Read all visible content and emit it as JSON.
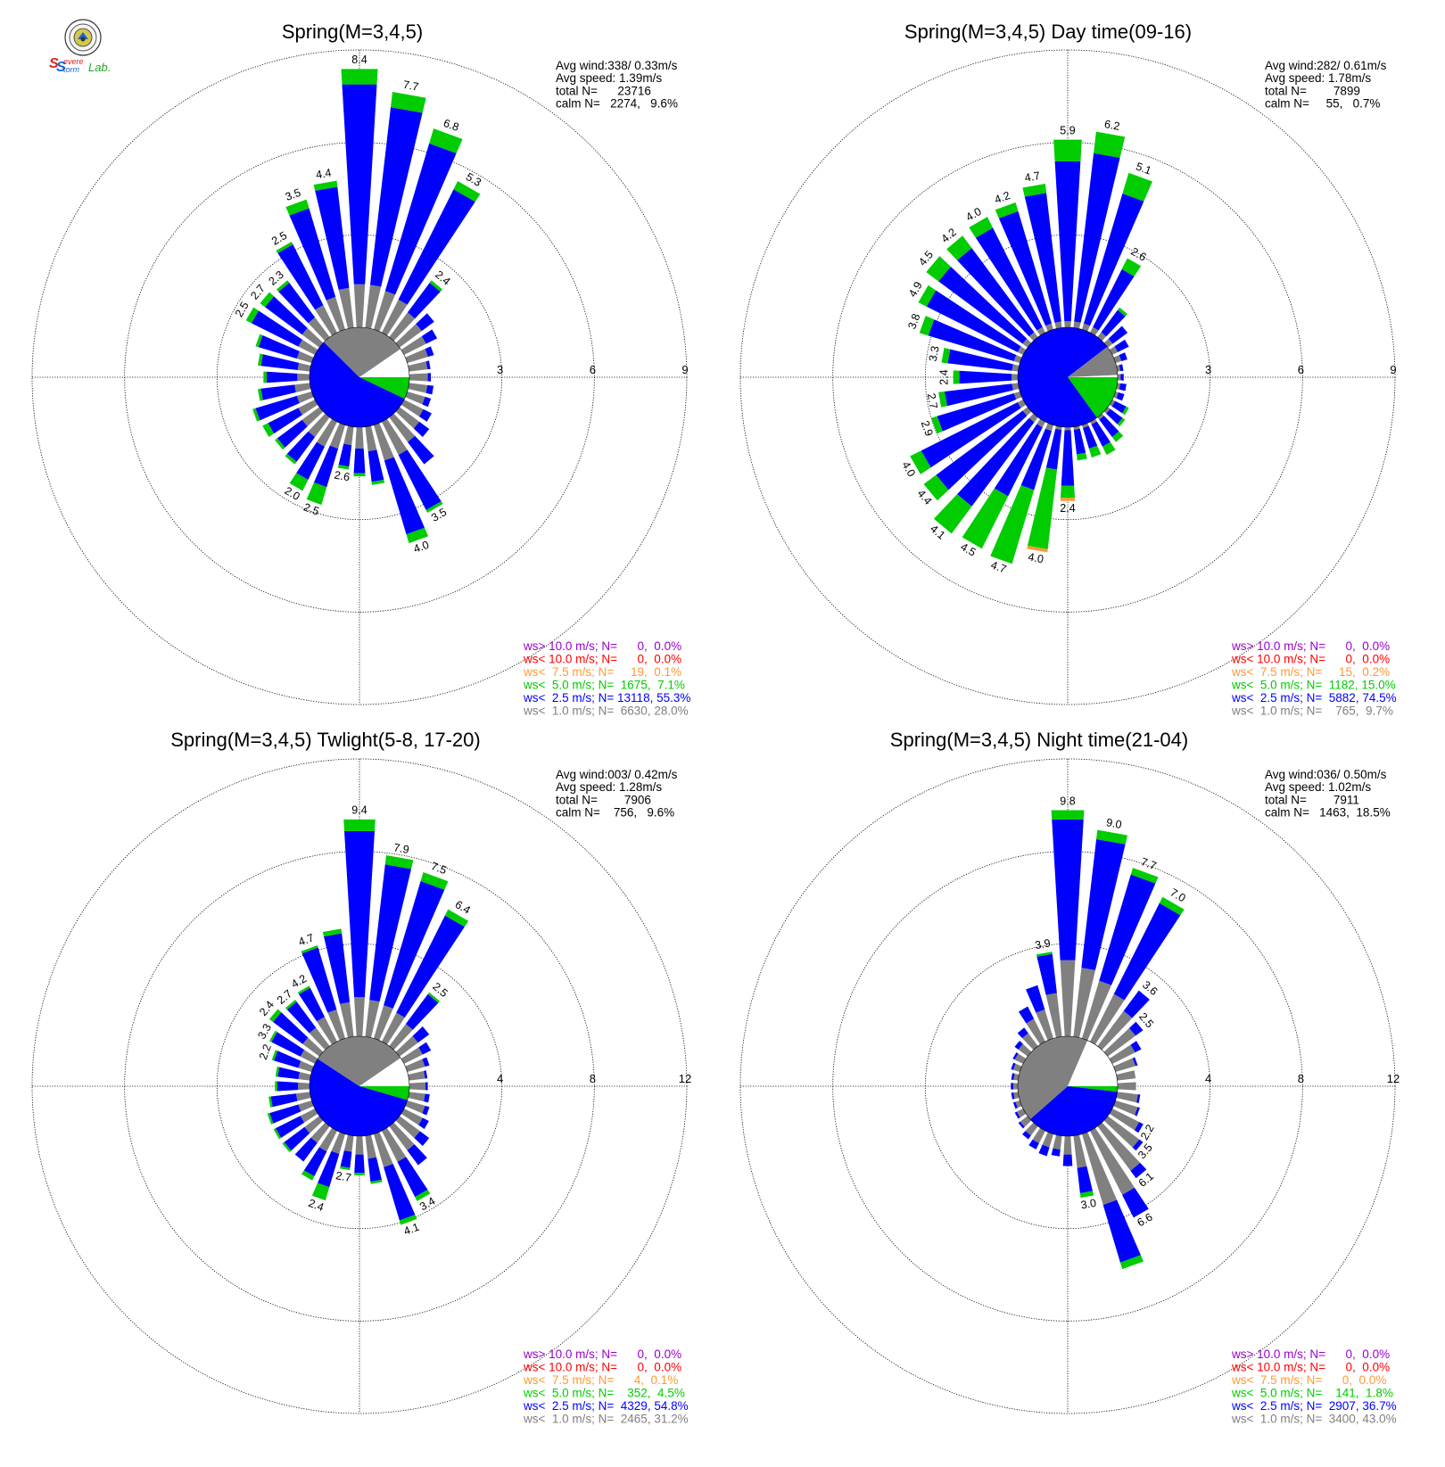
{
  "logo": {
    "text": "Severe Storm Lab.",
    "colors": {
      "S1": "#e0201c",
      "S2": "#1565d8",
      "evere": "#e0201c",
      "torm": "#1565d8",
      "lab": "#22a822"
    }
  },
  "colors": {
    "calm": "#ffffff",
    "lt1": "#808080",
    "lt2_5": "#0000ff",
    "lt5": "#00cc00",
    "lt7_5": "#ff9933",
    "lt10": "#ff0000",
    "gt10": "#9900cc",
    "grid": "#000000"
  },
  "panels": [
    {
      "title": "Spring(M=3,4,5)",
      "stats": [
        "Avg wind:338/ 0.33m/s",
        "Avg speed: 1.39m/s",
        "total N=      23716",
        "calm N=   2274,   9.6%"
      ],
      "ring_labels": [
        "3",
        "6",
        "9"
      ],
      "legend": [
        "ws> 10.0 m/s; N=      0,  0.0%",
        "ws< 10.0 m/s; N=      0,  0.0%",
        "ws<  7.5 m/s; N=     19,  0.1%",
        "ws<  5.0 m/s; N=  1675,  7.1%",
        "ws<  2.5 m/s; N= 13118, 55.3%",
        "ws<  1.0 m/s; N=  6630, 28.0%"
      ]
    },
    {
      "title": "Spring(M=3,4,5) Day time(09-16)",
      "stats": [
        "Avg wind:282/ 0.61m/s",
        "Avg speed: 1.78m/s",
        "total N=        7899",
        "calm N=     55,   0.7%"
      ],
      "ring_labels": [
        "3",
        "6",
        "9"
      ],
      "legend": [
        "ws> 10.0 m/s; N=      0,  0.0%",
        "ws< 10.0 m/s; N=      0,  0.0%",
        "ws<  7.5 m/s; N=     15,  0.2%",
        "ws<  5.0 m/s; N=  1182, 15.0%",
        "ws<  2.5 m/s; N=  5882, 74.5%",
        "ws<  1.0 m/s; N=    765,  9.7%"
      ]
    },
    {
      "title": "Spring(M=3,4,5) Twlight(5-8, 17-20)",
      "stats": [
        "Avg wind:003/ 0.42m/s",
        "Avg speed: 1.28m/s",
        "total N=        7906",
        "calm N=    756,   9.6%"
      ],
      "ring_labels": [
        "4",
        "8",
        "12"
      ],
      "legend": [
        "ws> 10.0 m/s; N=      0,  0.0%",
        "ws< 10.0 m/s; N=      0,  0.0%",
        "ws<  7.5 m/s; N=      4,  0.1%",
        "ws<  5.0 m/s; N=    352,  4.5%",
        "ws<  2.5 m/s; N=  4329, 54.8%",
        "ws<  1.0 m/s; N=  2465, 31.2%"
      ]
    },
    {
      "title": "Spring(M=3,4,5) Night time(21-04)",
      "stats": [
        "Avg wind:036/ 0.50m/s",
        "Avg speed: 1.02m/s",
        "total N=        7911",
        "calm N=   1463,  18.5%"
      ],
      "ring_labels": [
        "4",
        "8",
        "12"
      ],
      "legend": [
        "ws> 10.0 m/s; N=      0,  0.0%",
        "ws< 10.0 m/s; N=      0,  0.0%",
        "ws<  7.5 m/s; N=      0,  0.0%",
        "ws<  5.0 m/s; N=    141,  1.8%",
        "ws<  2.5 m/s; N=  2907, 36.7%",
        "ws<  1.0 m/s; N=  3400, 43.0%"
      ]
    }
  ],
  "chart_data": [
    {
      "type": "windrose",
      "title": "Spring(M=3,4,5)",
      "rmax": 9,
      "rings": [
        3,
        6,
        9
      ],
      "center_pie": {
        "calm": 9.6,
        "lt1": 28.0,
        "lt2_5": 55.3,
        "lt5": 7.1,
        "lt7_5": 0.1,
        "lt10": 0.0,
        "gt10": 0.0
      },
      "directions_deg": [
        0,
        10,
        20,
        30,
        40,
        50,
        60,
        70,
        80,
        90,
        100,
        110,
        120,
        130,
        140,
        150,
        160,
        170,
        180,
        190,
        200,
        210,
        220,
        230,
        240,
        250,
        260,
        270,
        280,
        290,
        300,
        310,
        320,
        330,
        340,
        350
      ],
      "lt1": [
        1.4,
        1.4,
        1.3,
        1.2,
        1.0,
        0.9,
        0.8,
        0.7,
        0.6,
        0.6,
        0.6,
        0.6,
        0.7,
        0.8,
        1.0,
        1.2,
        1.2,
        0.8,
        0.7,
        0.6,
        0.8,
        0.9,
        0.8,
        0.7,
        0.6,
        0.5,
        0.5,
        0.4,
        0.4,
        0.5,
        0.6,
        0.7,
        0.8,
        1.0,
        1.1,
        1.3
      ],
      "lt2_5": [
        6.5,
        5.8,
        5.0,
        4.0,
        1.2,
        0.5,
        0.4,
        0.2,
        0.1,
        0.1,
        0.2,
        0.2,
        0.3,
        0.4,
        0.9,
        2.0,
        2.5,
        1.0,
        0.8,
        0.7,
        1.3,
        1.2,
        1.0,
        1.0,
        1.1,
        1.4,
        1.1,
        1.0,
        1.2,
        1.3,
        1.7,
        1.5,
        1.4,
        2.2,
        3.0,
        3.3
      ],
      "lt5": [
        0.5,
        0.5,
        0.5,
        0.3,
        0.1,
        0.0,
        0.0,
        0.0,
        0.0,
        0.0,
        0.0,
        0.0,
        0.0,
        0.0,
        0.0,
        0.1,
        0.3,
        0.1,
        0.1,
        0.1,
        0.6,
        0.4,
        0.1,
        0.1,
        0.2,
        0.1,
        0.1,
        0.1,
        0.1,
        0.1,
        0.2,
        0.2,
        0.1,
        0.1,
        0.3,
        0.2
      ],
      "lt7_5": [
        0,
        0,
        0,
        0,
        0,
        0,
        0,
        0,
        0,
        0,
        0,
        0,
        0,
        0,
        0,
        0,
        0,
        0,
        0,
        0,
        0,
        0,
        0,
        0,
        0,
        0,
        0,
        0,
        0,
        0,
        0,
        0,
        0,
        0,
        0,
        0
      ],
      "labels": {
        "0": "8.4",
        "10": "7.7",
        "20": "6.8",
        "30": "5.3",
        "40": "2.4",
        "150": "3.5",
        "160": "4.0",
        "190": "2.6",
        "200": "2.5",
        "210": "2.0",
        "300": "2.5",
        "310": "2.7",
        "320": "2.3",
        "330": "2.5",
        "340": "3.5",
        "350": "4.4"
      }
    },
    {
      "type": "windrose",
      "title": "Spring(M=3,4,5) Day time(09-16)",
      "rmax": 9,
      "rings": [
        3,
        6,
        9
      ],
      "center_pie": {
        "calm": 0.7,
        "lt1": 9.7,
        "lt2_5": 74.5,
        "lt5": 15.0,
        "lt7_5": 0.2,
        "lt10": 0.0,
        "gt10": 0.0
      },
      "directions_deg": [
        0,
        10,
        20,
        30,
        40,
        50,
        60,
        70,
        80,
        90,
        100,
        110,
        120,
        130,
        140,
        150,
        160,
        170,
        180,
        190,
        200,
        210,
        220,
        230,
        240,
        250,
        260,
        270,
        280,
        290,
        300,
        310,
        320,
        330,
        340,
        350
      ],
      "lt1": [
        0.2,
        0.2,
        0.2,
        0.2,
        0.2,
        0.2,
        0.2,
        0.2,
        0.1,
        0.1,
        0.1,
        0.1,
        0.1,
        0.1,
        0.1,
        0.1,
        0.1,
        0.1,
        0.1,
        0.1,
        0.2,
        0.2,
        0.2,
        0.2,
        0.2,
        0.2,
        0.2,
        0.2,
        0.2,
        0.2,
        0.2,
        0.2,
        0.2,
        0.2,
        0.2,
        0.2
      ],
      "lt2_5": [
        5.2,
        5.5,
        4.4,
        2.1,
        0.9,
        0.6,
        0.4,
        0.2,
        0.1,
        0.1,
        0.2,
        0.2,
        0.4,
        0.5,
        0.7,
        0.8,
        0.7,
        0.8,
        1.8,
        1.3,
        2.0,
        2.5,
        3.4,
        3.5,
        3.5,
        2.6,
        2.2,
        1.7,
        2.1,
        2.9,
        3.3,
        3.4,
        3.4,
        3.6,
        3.8,
        4.2
      ],
      "lt5": [
        0.7,
        0.7,
        0.7,
        0.4,
        0.1,
        0.0,
        0.0,
        0.0,
        0.0,
        0.0,
        0.0,
        0.0,
        0.1,
        0.1,
        0.2,
        0.3,
        0.3,
        0.2,
        0.4,
        2.6,
        2.5,
        1.9,
        1.1,
        0.5,
        0.4,
        0.2,
        0.2,
        0.2,
        0.2,
        0.3,
        0.3,
        0.5,
        0.5,
        0.4,
        0.3,
        0.3
      ],
      "lt7_5": [
        0,
        0,
        0,
        0,
        0,
        0,
        0,
        0,
        0,
        0,
        0,
        0,
        0,
        0,
        0,
        0,
        0,
        0,
        0.1,
        0.1,
        0,
        0,
        0,
        0,
        0,
        0,
        0,
        0,
        0,
        0,
        0,
        0,
        0,
        0,
        0,
        0
      ],
      "labels": {
        "0": "5.9",
        "10": "6.2",
        "20": "5.1",
        "30": "2.6",
        "180": "2.4",
        "190": "4.0",
        "200": "4.7",
        "210": "4.5",
        "220": "4.1",
        "230": "4.4",
        "240": "4.0",
        "250": "2.9",
        "260": "2.7",
        "270": "2.4",
        "280": "3.3",
        "290": "3.8",
        "300": "4.9",
        "310": "4.5",
        "320": "4.2",
        "330": "4.0",
        "340": "4.2",
        "350": "4.7"
      }
    },
    {
      "type": "windrose",
      "title": "Spring(M=3,4,5) Twlight(5-8, 17-20)",
      "rmax": 12,
      "rings": [
        4,
        8,
        12
      ],
      "center_pie": {
        "calm": 9.6,
        "lt1": 31.2,
        "lt2_5": 54.8,
        "lt5": 4.5,
        "lt7_5": 0.1,
        "lt10": 0.0,
        "gt10": 0.0
      },
      "directions_deg": [
        0,
        10,
        20,
        30,
        40,
        50,
        60,
        70,
        80,
        90,
        100,
        110,
        120,
        130,
        140,
        150,
        160,
        170,
        180,
        190,
        200,
        210,
        220,
        230,
        240,
        250,
        260,
        270,
        280,
        290,
        300,
        310,
        320,
        330,
        340,
        350
      ],
      "lt1": [
        1.7,
        1.6,
        1.5,
        1.4,
        1.2,
        1.0,
        0.9,
        0.8,
        0.7,
        0.7,
        0.7,
        0.8,
        0.9,
        1.1,
        1.3,
        1.5,
        1.5,
        1.0,
        0.8,
        0.7,
        0.9,
        1.0,
        0.9,
        0.8,
        0.7,
        0.6,
        0.6,
        0.5,
        0.5,
        0.6,
        0.7,
        0.9,
        1.0,
        1.2,
        1.3,
        1.5
      ],
      "lt2_5": [
        7.2,
        5.9,
        5.6,
        4.7,
        1.6,
        0.6,
        0.4,
        0.2,
        0.1,
        0.1,
        0.2,
        0.2,
        0.3,
        0.5,
        0.8,
        1.7,
        2.4,
        1.0,
        0.8,
        0.7,
        1.5,
        1.2,
        1.0,
        1.1,
        1.2,
        1.3,
        1.1,
        0.9,
        0.9,
        1.1,
        1.4,
        1.6,
        1.4,
        1.4,
        2.8,
        3.0
      ],
      "lt5": [
        0.5,
        0.4,
        0.4,
        0.3,
        0.1,
        0.0,
        0.0,
        0.0,
        0.0,
        0.0,
        0.0,
        0.0,
        0.0,
        0.0,
        0.0,
        0.2,
        0.2,
        0.1,
        0.1,
        0.1,
        0.6,
        0.2,
        0.0,
        0.1,
        0.1,
        0.1,
        0.1,
        0.1,
        0.1,
        0.1,
        0.1,
        0.2,
        0.1,
        0.1,
        0.1,
        0.2
      ],
      "lt7_5": [
        0,
        0,
        0,
        0,
        0,
        0,
        0,
        0,
        0,
        0,
        0,
        0,
        0,
        0,
        0,
        0,
        0,
        0,
        0,
        0,
        0,
        0,
        0,
        0,
        0,
        0,
        0,
        0,
        0,
        0,
        0,
        0,
        0,
        0,
        0,
        0
      ],
      "labels": {
        "0": "9.4",
        "10": "7.9",
        "20": "7.5",
        "30": "6.4",
        "40": "2.5",
        "150": "3.4",
        "160": "4.1",
        "190": "2.7",
        "200": "2.4",
        "290": "2.2",
        "300": "3.3",
        "310": "2.4",
        "320": "2.7",
        "330": "4.2",
        "340": "4.7"
      }
    },
    {
      "type": "windrose",
      "title": "Spring(M=3,4,5) Night time(21-04)",
      "rmax": 12,
      "rings": [
        4,
        8,
        12
      ],
      "center_pie": {
        "calm": 18.5,
        "lt1": 43.0,
        "lt2_5": 36.7,
        "lt5": 1.8,
        "lt7_5": 0.0,
        "lt10": 0.0,
        "gt10": 0.0
      },
      "directions_deg": [
        0,
        10,
        20,
        30,
        40,
        50,
        60,
        70,
        80,
        90,
        100,
        110,
        120,
        130,
        140,
        150,
        160,
        170,
        180,
        190,
        200,
        210,
        220,
        230,
        240,
        250,
        260,
        270,
        280,
        290,
        300,
        310,
        320,
        330,
        340,
        350
      ],
      "lt1": [
        3.3,
        3.0,
        2.6,
        2.3,
        1.9,
        1.5,
        1.1,
        0.9,
        0.8,
        0.8,
        0.9,
        1.0,
        1.3,
        1.7,
        2.4,
        3.1,
        3.2,
        1.4,
        0.8,
        0.6,
        0.6,
        0.6,
        0.5,
        0.4,
        0.3,
        0.2,
        0.2,
        0.2,
        0.2,
        0.3,
        0.4,
        0.5,
        0.7,
        1.1,
        1.3,
        1.9
      ],
      "lt2_5": [
        6.1,
        5.6,
        4.8,
        4.4,
        1.1,
        0.4,
        0.3,
        0.1,
        0.0,
        0.0,
        0.1,
        0.1,
        0.2,
        0.2,
        0.4,
        1.1,
        2.6,
        1.1,
        0.5,
        0.3,
        0.4,
        0.3,
        0.2,
        0.1,
        0.1,
        0.1,
        0.1,
        0.1,
        0.1,
        0.1,
        0.1,
        0.2,
        0.3,
        0.6,
        1.1,
        1.7
      ],
      "lt5": [
        0.4,
        0.4,
        0.3,
        0.3,
        0.0,
        0.0,
        0.0,
        0.0,
        0.0,
        0.0,
        0.0,
        0.0,
        0.0,
        0.0,
        0.0,
        0.0,
        0.3,
        0.2,
        0.0,
        0.0,
        0.0,
        0.0,
        0.0,
        0.0,
        0.0,
        0.0,
        0.0,
        0.0,
        0.0,
        0.0,
        0.0,
        0.0,
        0.0,
        0.0,
        0.0,
        0.1
      ],
      "lt7_5": [
        0,
        0,
        0,
        0,
        0,
        0,
        0,
        0,
        0,
        0,
        0,
        0,
        0,
        0,
        0,
        0,
        0,
        0,
        0,
        0,
        0,
        0,
        0,
        0,
        0,
        0,
        0,
        0,
        0,
        0,
        0,
        0,
        0,
        0,
        0,
        0
      ],
      "labels": {
        "0": "9.8",
        "10": "9.0",
        "20": "7.7",
        "30": "7.0",
        "40": "3.6",
        "50": "2.5",
        "120": "2.2",
        "130": "3.5",
        "140": "6.1",
        "150": "6.6",
        "170": "3.0",
        "350": "3.9"
      }
    }
  ]
}
